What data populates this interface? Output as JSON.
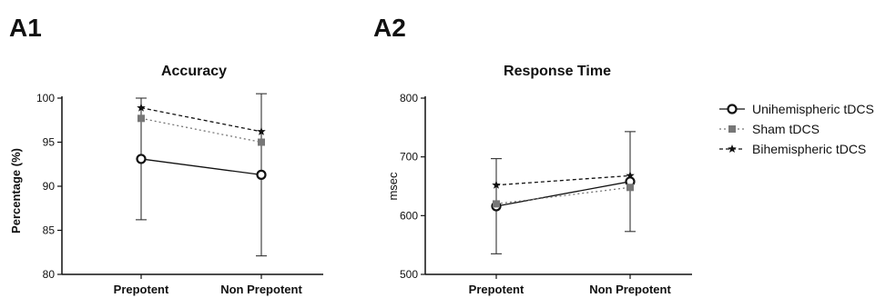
{
  "panels": [
    {
      "label": "A1"
    },
    {
      "label": "A2"
    }
  ],
  "legend": [
    {
      "name": "Unihemispheric tDCS",
      "marker": "circle",
      "dash": "solid",
      "color": "#111111"
    },
    {
      "name": "Sham tDCS",
      "marker": "square",
      "dash": "dotted",
      "color": "#777777"
    },
    {
      "name": "Bihemispheric tDCS",
      "marker": "star",
      "dash": "dashed",
      "color": "#111111"
    }
  ],
  "chart_data": [
    {
      "type": "line",
      "title": "Accuracy",
      "ylabel": "Percentage (%)",
      "xlabel": "",
      "categories": [
        "Prepotent",
        "Non Prepotent"
      ],
      "ylim": [
        80,
        100
      ],
      "yticks": [
        80,
        85,
        90,
        95,
        100
      ],
      "series": [
        {
          "name": "Unihemispheric tDCS",
          "values": [
            93.1,
            91.3
          ],
          "err": [
            [
              86.2,
              100.0
            ],
            [
              82.1,
              100.5
            ]
          ]
        },
        {
          "name": "Sham tDCS",
          "values": [
            97.7,
            95.0
          ],
          "err": null
        },
        {
          "name": "Bihemispheric tDCS",
          "values": [
            98.9,
            96.2
          ],
          "err": null
        }
      ]
    },
    {
      "type": "line",
      "title": "Response Time",
      "ylabel": "msec",
      "xlabel": "",
      "categories": [
        "Prepotent",
        "Non Prepotent"
      ],
      "ylim": [
        500,
        800
      ],
      "yticks": [
        500,
        600,
        700,
        800
      ],
      "series": [
        {
          "name": "Unihemispheric tDCS",
          "values": [
            616,
            658
          ],
          "err": [
            [
              535,
              697
            ],
            [
              573,
              743
            ]
          ]
        },
        {
          "name": "Sham tDCS",
          "values": [
            620,
            648
          ],
          "err": null
        },
        {
          "name": "Bihemispheric tDCS",
          "values": [
            652,
            668
          ],
          "err": null
        }
      ]
    }
  ]
}
